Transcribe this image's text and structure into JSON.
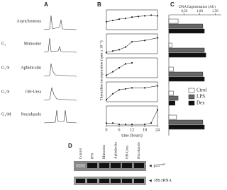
{
  "panels": {
    "a": {
      "label": "A",
      "rows": [
        {
          "treatment": "Asynchronous"
        },
        {
          "phase": "G₁",
          "treatment": "Mimosine"
        },
        {
          "phase": "G₁/S",
          "treatment": "Aphidicolin"
        },
        {
          "phase": "G₁/S",
          "treatment": "OH-Urea"
        },
        {
          "phase": "G₂/M",
          "treatment": "Nocodazole"
        }
      ]
    },
    "b": {
      "label": "B",
      "y_label": "Thymidine incorporation (cpm x 10⁻³)",
      "x_label": "time (hours)",
      "xlim": [
        0,
        24
      ],
      "xticks": [
        0,
        6,
        12,
        18,
        24
      ],
      "plots": [
        {
          "x": [
            0,
            3,
            6,
            9,
            12,
            15,
            18,
            21,
            24
          ],
          "values": [
            12,
            14,
            16,
            17,
            19,
            20,
            21,
            22,
            21
          ],
          "ylim": [
            0,
            30
          ]
        },
        {
          "x": [
            0,
            3,
            6,
            9,
            12,
            18,
            24
          ],
          "values": [
            1,
            2,
            3,
            5,
            9,
            10,
            12
          ],
          "ylim": [
            0,
            15
          ]
        },
        {
          "x": [
            0,
            3,
            6,
            9,
            12
          ],
          "values": [
            5,
            12,
            20,
            28,
            30
          ],
          "ylim": [
            0,
            40
          ]
        },
        {
          "x": [
            0,
            3,
            6,
            9,
            12,
            18,
            24
          ],
          "values": [
            2,
            8,
            12,
            13,
            14,
            14,
            16
          ],
          "ylim": [
            0,
            20
          ]
        },
        {
          "x": [
            0,
            3,
            6,
            9,
            12,
            18,
            21,
            24
          ],
          "values": [
            2,
            2,
            1,
            1,
            1,
            1,
            2,
            12
          ],
          "ylim": [
            0,
            15
          ]
        }
      ]
    },
    "c": {
      "label": "C",
      "type": "bar",
      "title": "DNA fragmentation (AU)",
      "xlim": [
        0,
        1.7
      ],
      "xticks": [
        {
          "value": 0.5,
          "label": "0,50"
        },
        {
          "value": 1,
          "label": "1,00"
        },
        {
          "value": 1.5,
          "label": "1,50"
        }
      ],
      "series": [
        {
          "name": "Ctrol",
          "color": "#ffffff",
          "values": [
            0.3,
            0.1,
            0.15,
            0.15,
            0.25
          ]
        },
        {
          "name": "LPS",
          "color": "#666666",
          "values": [
            1.1,
            1.15,
            1.1,
            0.3,
            1.1
          ]
        },
        {
          "name": "Dex",
          "color": "#111111",
          "values": [
            1.15,
            1.2,
            1.15,
            0.2,
            1.15
          ]
        }
      ]
    },
    "d": {
      "label": "D",
      "lanes": [
        "Control",
        "IFN",
        "Mimosine",
        "Aphidicolin",
        "OH-Urea",
        "Nocodazole"
      ],
      "bands": [
        {
          "name": "p21",
          "superscript": "waf1"
        },
        {
          "name": "18S rRNA"
        }
      ]
    }
  }
}
